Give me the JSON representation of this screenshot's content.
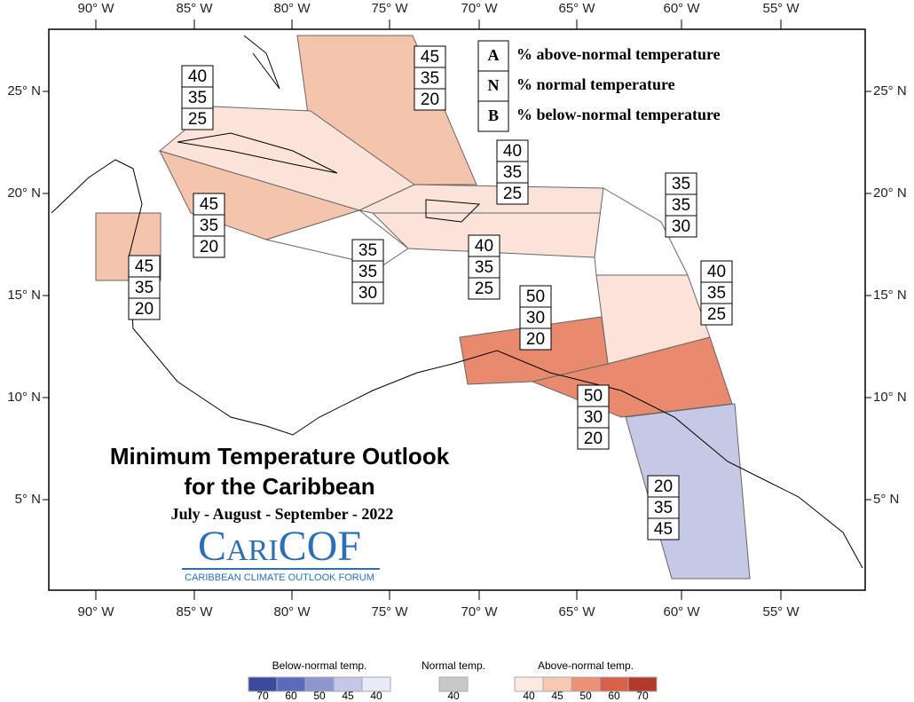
{
  "longitude_labels": [
    "90° W",
    "85° W",
    "80° W",
    "75° W",
    "70° W",
    "65° W",
    "60° W",
    "55° W"
  ],
  "latitude_labels": [
    "25° N",
    "20° N",
    "15° N",
    "10° N",
    "5° N"
  ],
  "key": [
    {
      "letter": "A",
      "text": "% above-normal temperature"
    },
    {
      "letter": "N",
      "text": "% normal temperature"
    },
    {
      "letter": "B",
      "text": "% below-normal temperature"
    }
  ],
  "regions": [
    {
      "values": [
        45,
        35,
        20
      ]
    },
    {
      "values": [
        40,
        35,
        25
      ]
    },
    {
      "values": [
        45,
        35,
        20
      ]
    },
    {
      "values": [
        45,
        35,
        20
      ]
    },
    {
      "values": [
        35,
        35,
        30
      ]
    },
    {
      "values": [
        40,
        35,
        25
      ]
    },
    {
      "values": [
        40,
        35,
        25
      ]
    },
    {
      "values": [
        35,
        35,
        30
      ]
    },
    {
      "values": [
        40,
        35,
        25
      ]
    },
    {
      "values": [
        50,
        30,
        20
      ]
    },
    {
      "values": [
        50,
        30,
        20
      ]
    },
    {
      "values": [
        20,
        35,
        45
      ]
    }
  ],
  "title": [
    "Minimum Temperature Outlook",
    "for the Caribbean"
  ],
  "period": "July - August - September - 2022",
  "logo": {
    "name": "CariCOF",
    "subtitle": "CARIBBEAN CLIMATE OUTLOOK FORUM"
  },
  "colorbar": {
    "below": {
      "label": "Below-normal temp.",
      "ticks": [
        70,
        60,
        50,
        45,
        40
      ]
    },
    "normal": {
      "label": "Normal temp.",
      "ticks": [
        40
      ]
    },
    "above": {
      "label": "Above-normal temp.",
      "ticks": [
        40,
        45,
        50,
        60,
        70
      ]
    }
  }
}
